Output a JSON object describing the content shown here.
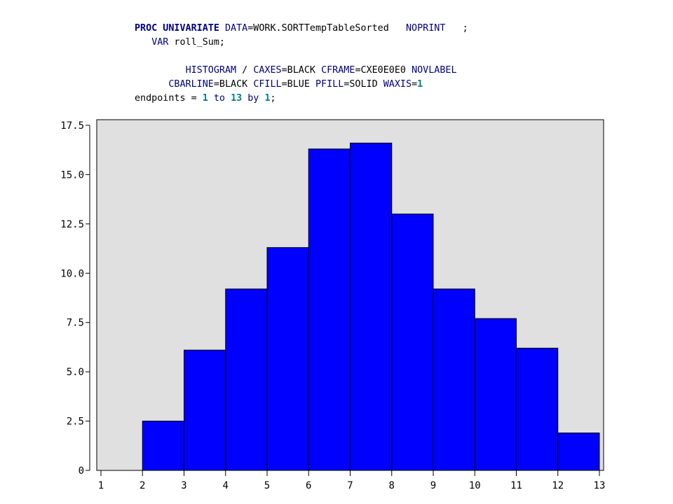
{
  "code": {
    "line1": {
      "proc": "PROC UNIVARIATE",
      "data_kw": "DATA",
      "data_val": "=WORK.SORTTempTableSorted   ",
      "noprint": "NOPRINT",
      "end": "   ;"
    },
    "line2": {
      "indent": "   ",
      "var_kw": "VAR",
      "rest": " roll_Sum;"
    },
    "line4": {
      "indent": "         ",
      "histogram": "HISTOGRAM",
      "slash": " / ",
      "caxes_kw": "CAXES",
      "caxes_val": "=BLACK ",
      "cframe_kw": "CFRAME",
      "cframe_val": "=CXE0E0E0 ",
      "novlabel": "NOVLABEL"
    },
    "line5": {
      "indent": "      ",
      "cbarline_kw": "CBARLINE",
      "cbarline_val": "=BLACK ",
      "cfill_kw": "CFILL",
      "cfill_val": "=BLUE ",
      "pfill_kw": "PFILL",
      "pfill_val": "=SOLID ",
      "waxis_kw": "WAXIS",
      "waxis_eq": "=",
      "waxis_num": "1"
    },
    "line6": {
      "pre": "endpoints = ",
      "n1": "1",
      "to": " to ",
      "n2": "13",
      "by": " by ",
      "n3": "1",
      "end": ";"
    }
  },
  "chart_data": {
    "type": "bar",
    "title": "",
    "xlabel": "",
    "ylabel": "",
    "bin_edges": [
      1,
      2,
      3,
      4,
      5,
      6,
      7,
      8,
      9,
      10,
      11,
      12,
      13
    ],
    "values": [
      0,
      2.5,
      6.1,
      9.2,
      11.3,
      16.3,
      16.6,
      13.0,
      9.2,
      7.7,
      6.2,
      1.9
    ],
    "xlim": [
      1,
      13
    ],
    "ylim": [
      0,
      17.5
    ],
    "x_ticks": [
      "1",
      "2",
      "3",
      "4",
      "5",
      "6",
      "7",
      "8",
      "9",
      "10",
      "11",
      "12",
      "13"
    ],
    "y_ticks": [
      "0",
      "2.5",
      "5.0",
      "7.5",
      "10.0",
      "12.5",
      "15.0",
      "17.5"
    ],
    "y_tick_values": [
      0,
      2.5,
      5.0,
      7.5,
      10.0,
      12.5,
      15.0,
      17.5
    ],
    "grid": false,
    "colors": {
      "bar_fill": "#0000FF",
      "bar_line": "#000000",
      "frame": "#E0E0E0",
      "axes": "#000000"
    }
  }
}
